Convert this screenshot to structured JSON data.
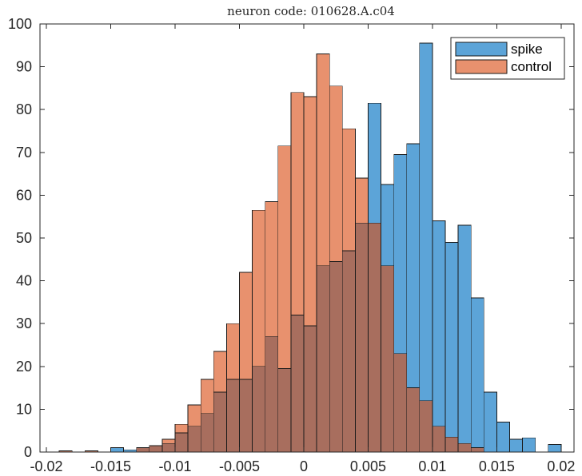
{
  "chart_data": {
    "type": "bar",
    "subtype": "overlaid-histogram",
    "title": "neuron code: 010628.A.c04",
    "xlabel": "",
    "ylabel": "",
    "xlim": [
      -0.0205,
      0.021
    ],
    "ylim": [
      0,
      100
    ],
    "x_ticks": [
      -0.02,
      -0.015,
      -0.01,
      -0.005,
      0,
      0.005,
      0.01,
      0.015,
      0.02
    ],
    "x_tick_labels": [
      "-0.02",
      "-0.015",
      "-0.01",
      "-0.005",
      "0",
      "0.005",
      "0.01",
      "0.015",
      "0.02"
    ],
    "y_ticks": [
      0,
      10,
      20,
      30,
      40,
      50,
      60,
      70,
      80,
      90,
      100
    ],
    "y_tick_labels": [
      "0",
      "10",
      "20",
      "30",
      "40",
      "50",
      "60",
      "70",
      "80",
      "90",
      "100"
    ],
    "bin_width": 0.001,
    "grid": false,
    "legend_position": "top-right",
    "overlap_color": "#A86E5E",
    "series": [
      {
        "name": "spike",
        "color": "#5CA4D8",
        "bin_left_edges": [
          -0.015,
          -0.014,
          -0.013,
          -0.012,
          -0.011,
          -0.01,
          -0.009,
          -0.008,
          -0.007,
          -0.006,
          -0.005,
          -0.004,
          -0.003,
          -0.002,
          -0.001,
          0.0,
          0.001,
          0.002,
          0.003,
          0.004,
          0.005,
          0.006,
          0.007,
          0.008,
          0.009,
          0.01,
          0.011,
          0.012,
          0.013,
          0.014,
          0.015,
          0.016,
          0.017,
          0.019
        ],
        "values": [
          1,
          0.5,
          1,
          1.5,
          2,
          4.5,
          6,
          9,
          14,
          17,
          17,
          20,
          27,
          19.5,
          32,
          29.5,
          43.5,
          44.5,
          47,
          53.5,
          81.5,
          62.5,
          69.5,
          72,
          95.5,
          54,
          49,
          53,
          36,
          14,
          7,
          3,
          3.3,
          1.8
        ]
      },
      {
        "name": "control",
        "color": "#E8916E",
        "bin_left_edges": [
          -0.019,
          -0.017,
          -0.013,
          -0.012,
          -0.011,
          -0.01,
          -0.009,
          -0.008,
          -0.007,
          -0.006,
          -0.005,
          -0.004,
          -0.003,
          -0.002,
          -0.001,
          0.0,
          0.001,
          0.002,
          0.003,
          0.004,
          0.005,
          0.006,
          0.007,
          0.008,
          0.009,
          0.01,
          0.011,
          0.012,
          0.013
        ],
        "values": [
          0.3,
          0.3,
          1,
          1.5,
          3,
          6.5,
          11,
          17,
          23.5,
          30,
          42,
          56.5,
          58.5,
          71.5,
          84,
          83,
          93,
          85.5,
          75.5,
          64,
          53.5,
          43.5,
          23,
          15,
          12,
          6,
          3.5,
          2,
          1
        ]
      }
    ]
  }
}
